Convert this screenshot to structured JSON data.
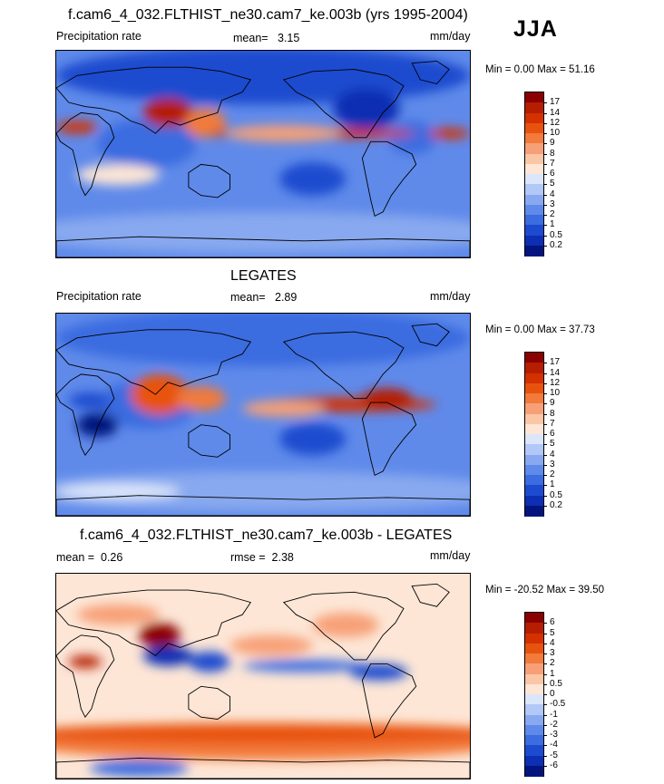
{
  "season": "JJA",
  "panels": [
    {
      "id": "model",
      "title": "f.cam6_4_032.FLTHIST_ne30.cam7_ke.003b (yrs 1995-2004)",
      "left_label": "Precipitation rate",
      "mean_label": "mean=",
      "mean_value": "3.15",
      "units": "mm/day",
      "minmax": "Min =   0.00 Max =  51.16",
      "levels": [
        "17",
        "14",
        "12",
        "10",
        "9",
        "8",
        "7",
        "6",
        "5",
        "4",
        "3",
        "2",
        "1",
        "0.5",
        "0.2"
      ]
    },
    {
      "id": "obs",
      "title": "LEGATES",
      "left_label": "Precipitation rate",
      "mean_label": "mean=",
      "mean_value": "2.89",
      "units": "mm/day",
      "minmax": "Min =   0.00 Max =  37.73",
      "levels": [
        "17",
        "14",
        "12",
        "10",
        "9",
        "8",
        "7",
        "6",
        "5",
        "4",
        "3",
        "2",
        "1",
        "0.5",
        "0.2"
      ]
    },
    {
      "id": "diff",
      "title": "f.cam6_4_032.FLTHIST_ne30.cam7_ke.003b - LEGATES",
      "left_label": "mean =",
      "left_value": "0.26",
      "mean_label": "rmse =",
      "mean_value": "2.38",
      "units": "mm/day",
      "minmax": "Min = -20.52 Max =  39.50",
      "levels": [
        "6",
        "5",
        "4",
        "3",
        "2",
        "1",
        "0.5",
        "0",
        "-0.5",
        "-1",
        "-2",
        "-3",
        "-4",
        "-5",
        "-6"
      ]
    }
  ],
  "colors": {
    "abs_scale": [
      "#8b0000",
      "#b51e00",
      "#d43100",
      "#e8520f",
      "#f27a3a",
      "#f7a077",
      "#fbc6a6",
      "#fde6d6",
      "#dbe6fb",
      "#b2c8f6",
      "#88a9ef",
      "#5f8aea",
      "#3b6ce0",
      "#1d4bcf",
      "#0c2fb3",
      "#04147e"
    ],
    "diff_scale": [
      "#8b0000",
      "#b51e00",
      "#d43100",
      "#e8520f",
      "#f27a3a",
      "#f7a077",
      "#fbc6a6",
      "#fde6d6",
      "#dbe6fb",
      "#b2c8f6",
      "#88a9ef",
      "#5f8aea",
      "#3b6ce0",
      "#1d4bcf",
      "#0c2fb3",
      "#04147e"
    ]
  },
  "chart_data": [
    {
      "type": "heatmap",
      "title": "f.cam6_4_032.FLTHIST_ne30.cam7_ke.003b (yrs 1995-2004)",
      "variable": "Precipitation rate",
      "units": "mm/day",
      "mean": 3.15,
      "min": 0.0,
      "max": 51.16,
      "contour_levels": [
        0.2,
        0.5,
        1,
        2,
        3,
        4,
        5,
        6,
        7,
        8,
        9,
        10,
        12,
        14,
        17
      ]
    },
    {
      "type": "heatmap",
      "title": "LEGATES",
      "variable": "Precipitation rate",
      "units": "mm/day",
      "mean": 2.89,
      "min": 0.0,
      "max": 37.73,
      "contour_levels": [
        0.2,
        0.5,
        1,
        2,
        3,
        4,
        5,
        6,
        7,
        8,
        9,
        10,
        12,
        14,
        17
      ]
    },
    {
      "type": "heatmap",
      "title": "f.cam6_4_032.FLTHIST_ne30.cam7_ke.003b - LEGATES",
      "units": "mm/day",
      "mean": 0.26,
      "rmse": 2.38,
      "min": -20.52,
      "max": 39.5,
      "contour_levels": [
        -6,
        -5,
        -4,
        -3,
        -2,
        -1,
        -0.5,
        0,
        0.5,
        1,
        2,
        3,
        4,
        5,
        6
      ]
    }
  ]
}
